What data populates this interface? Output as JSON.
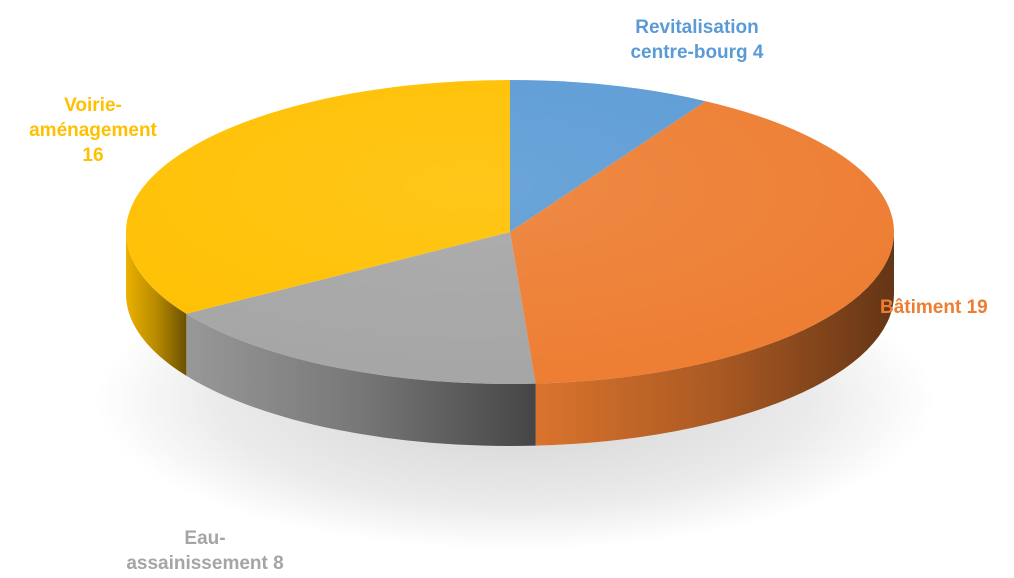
{
  "chart_data": {
    "type": "pie",
    "variant": "3d",
    "title": "",
    "start_direction": "top",
    "direction": "clockwise",
    "slices": [
      {
        "label_lines": [
          "Revitalisation",
          "centre-bourg 4"
        ],
        "category": "Revitalisation centre-bourg",
        "value": 4,
        "color": "#5B9BD5"
      },
      {
        "label_lines": [
          "Bâtiment 19"
        ],
        "category": "Bâtiment",
        "value": 19,
        "color": "#ED7D31"
      },
      {
        "label_lines": [
          "Eau-",
          "assainissement 8"
        ],
        "category": "Eau-assainissement",
        "value": 8,
        "color": "#A5A5A5"
      },
      {
        "label_lines": [
          "Voirie-",
          "aménagement",
          "16"
        ],
        "category": "Voirie-aménagement",
        "value": 16,
        "color": "#FFC000"
      }
    ]
  }
}
